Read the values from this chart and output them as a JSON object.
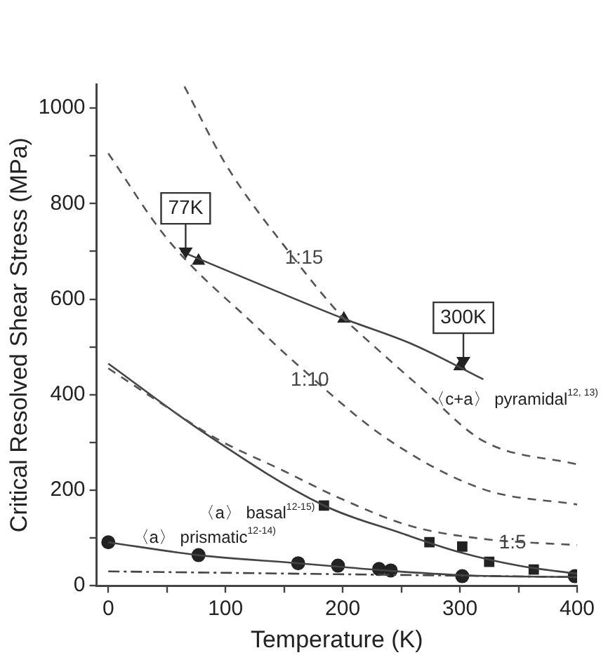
{
  "chart_data": {
    "type": "scatter",
    "xlabel": "Temperature (K)",
    "ylabel": "Critical Resolved Shear Stress (MPa)",
    "xlim": [
      -10,
      400
    ],
    "xticks": [
      0,
      {
        "value": 50,
        "label": null
      },
      100,
      {
        "value": 150,
        "label": null
      },
      200,
      {
        "value": 250,
        "label": null
      },
      300,
      {
        "value": 350,
        "label": null
      },
      400
    ],
    "ylim": [
      0,
      1050
    ],
    "yticks": [
      0,
      {
        "value": 100,
        "label": null
      },
      200,
      {
        "value": 300,
        "label": null
      },
      400,
      {
        "value": 500,
        "label": null
      },
      600,
      {
        "value": 700,
        "label": null
      },
      800,
      {
        "value": 900,
        "label": null
      },
      1000
    ],
    "grid": false,
    "legend": false,
    "series": [
      {
        "type": "line",
        "color": "#555555",
        "line_style": "dashed",
        "marker": "none",
        "x": [
          65,
          101,
          155,
          201,
          212,
          266,
          320,
          400
        ],
        "values": [
          1045,
          879,
          696,
          559,
          534,
          416,
          303,
          254
        ]
      },
      {
        "type": "line",
        "color": "#555555",
        "line_style": "dashed",
        "marker": "none",
        "x": [
          0,
          50,
          130,
          158,
          237,
          320,
          400
        ],
        "values": [
          905,
          727,
          534,
          470,
          309,
          202,
          170
        ]
      },
      {
        "type": "line",
        "color": "#555555",
        "line_style": "dashed",
        "marker": "none",
        "x": [
          0,
          40,
          93,
          150,
          196,
          258,
          320,
          400
        ],
        "values": [
          455,
          390,
          307,
          240,
          185,
          125,
          98,
          85
        ]
      },
      {
        "type": "line",
        "color": "#444444",
        "line_style": "dashdot",
        "marker": "none",
        "x": [
          0,
          400
        ],
        "values": [
          30,
          18
        ]
      },
      {
        "type": "line",
        "color": "#444444",
        "line_style": "solid",
        "marker": "none",
        "x": [
          62,
          140,
          201,
          260,
          320
        ],
        "values": [
          700,
          620,
          559,
          505,
          432
        ]
      },
      {
        "type": "line",
        "color": "#444444",
        "line_style": "solid",
        "marker": "none",
        "x": [
          0,
          80,
          184,
          250,
          300,
          350,
          400
        ],
        "values": [
          465,
          323,
          168,
          110,
          70,
          42,
          25
        ]
      },
      {
        "type": "line",
        "color": "#444444",
        "line_style": "solid",
        "marker": "none",
        "x": [
          0,
          77,
          162,
          196,
          241,
          302,
          400
        ],
        "values": [
          91,
          64,
          47,
          40,
          31,
          22,
          18
        ]
      },
      {
        "name": "〈c+a〉 pyramidal$^{12, 13)}$",
        "color": "#222222",
        "marker": "triangle",
        "x": [
          77,
          201,
          300
        ],
        "values": [
          680,
          559,
          459
        ]
      },
      {
        "name": "〈a〉 basal$^{12-15)}$",
        "color": "#222222",
        "marker": "square",
        "x": [
          184,
          274,
          302,
          325,
          363
        ],
        "values": [
          168,
          91,
          82,
          50,
          34
        ]
      },
      {
        "name": "〈a〉 prismatic$^{12-14)}$",
        "color": "#222222",
        "marker": "circle",
        "x": [
          0,
          77,
          162,
          196,
          231,
          241,
          302,
          398
        ],
        "values": [
          91,
          64,
          47,
          42,
          35,
          32,
          20,
          20
        ]
      }
    ],
    "annotations": [
      {
        "text": "1:15",
        "x": 167,
        "y": 685
      },
      {
        "text": "1:10",
        "x": 172,
        "y": 430
      },
      {
        "text": "1:5",
        "x": 345,
        "y": 90
      },
      {
        "text": "77K",
        "x": 66,
        "y": 790
      },
      {
        "text": "300K",
        "x": 303,
        "y": 561
      }
    ]
  }
}
